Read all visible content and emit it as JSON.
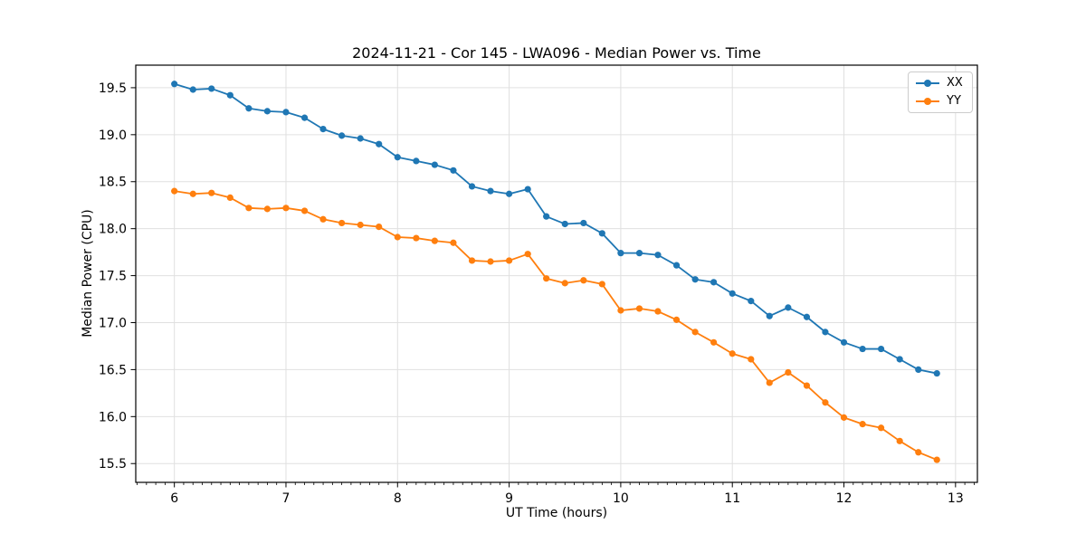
{
  "chart_data": {
    "type": "line",
    "title": "2024-11-21 - Cor 145 - LWA096 - Median Power vs. Time",
    "xlabel": "UT Time (hours)",
    "ylabel": "Median Power (CPU)",
    "xlim": [
      5.654,
      13.196
    ],
    "ylim": [
      15.3,
      19.74
    ],
    "xticks": [
      6,
      7,
      8,
      9,
      10,
      11,
      12,
      13
    ],
    "xtick_labels": [
      "6",
      "7",
      "8",
      "9",
      "10",
      "11",
      "12",
      "13"
    ],
    "x_minor_step": 0.0833333,
    "yticks": [
      15.5,
      16.0,
      16.5,
      17.0,
      17.5,
      18.0,
      18.5,
      19.0,
      19.5
    ],
    "ytick_labels": [
      "15.5",
      "16.0",
      "16.5",
      "17.0",
      "17.5",
      "18.0",
      "18.5",
      "19.0",
      "19.5"
    ],
    "grid": true,
    "grid_color": "#e0e0e0",
    "legend_position": "upper right",
    "x": [
      6.0,
      6.167,
      6.333,
      6.5,
      6.667,
      6.833,
      7.0,
      7.167,
      7.333,
      7.5,
      7.667,
      7.833,
      8.0,
      8.167,
      8.333,
      8.5,
      8.667,
      8.833,
      9.0,
      9.167,
      9.333,
      9.5,
      9.667,
      9.833,
      10.0,
      10.167,
      10.333,
      10.5,
      10.667,
      10.833,
      11.0,
      11.167,
      11.333,
      11.5,
      11.667,
      11.833,
      12.0,
      12.167,
      12.333,
      12.5,
      12.667,
      12.833
    ],
    "series": [
      {
        "name": "XX",
        "color": "#1f77b4",
        "values": [
          19.54,
          19.48,
          19.49,
          19.42,
          19.28,
          19.25,
          19.24,
          19.18,
          19.06,
          18.99,
          18.96,
          18.9,
          18.76,
          18.72,
          18.68,
          18.62,
          18.45,
          18.4,
          18.37,
          18.42,
          18.13,
          18.05,
          18.06,
          17.95,
          17.74,
          17.74,
          17.72,
          17.61,
          17.46,
          17.43,
          17.31,
          17.23,
          17.07,
          17.16,
          17.06,
          16.9,
          16.79,
          16.72,
          16.72,
          16.61,
          16.5,
          16.46
        ]
      },
      {
        "name": "YY",
        "color": "#ff7f0e",
        "values": [
          18.4,
          18.37,
          18.38,
          18.33,
          18.22,
          18.21,
          18.22,
          18.19,
          18.1,
          18.06,
          18.04,
          18.02,
          17.91,
          17.9,
          17.87,
          17.85,
          17.66,
          17.65,
          17.66,
          17.73,
          17.47,
          17.42,
          17.45,
          17.41,
          17.13,
          17.15,
          17.12,
          17.03,
          16.9,
          16.79,
          16.67,
          16.61,
          16.36,
          16.47,
          16.33,
          16.15,
          15.99,
          15.92,
          15.88,
          15.74,
          15.62,
          15.54
        ]
      }
    ]
  }
}
